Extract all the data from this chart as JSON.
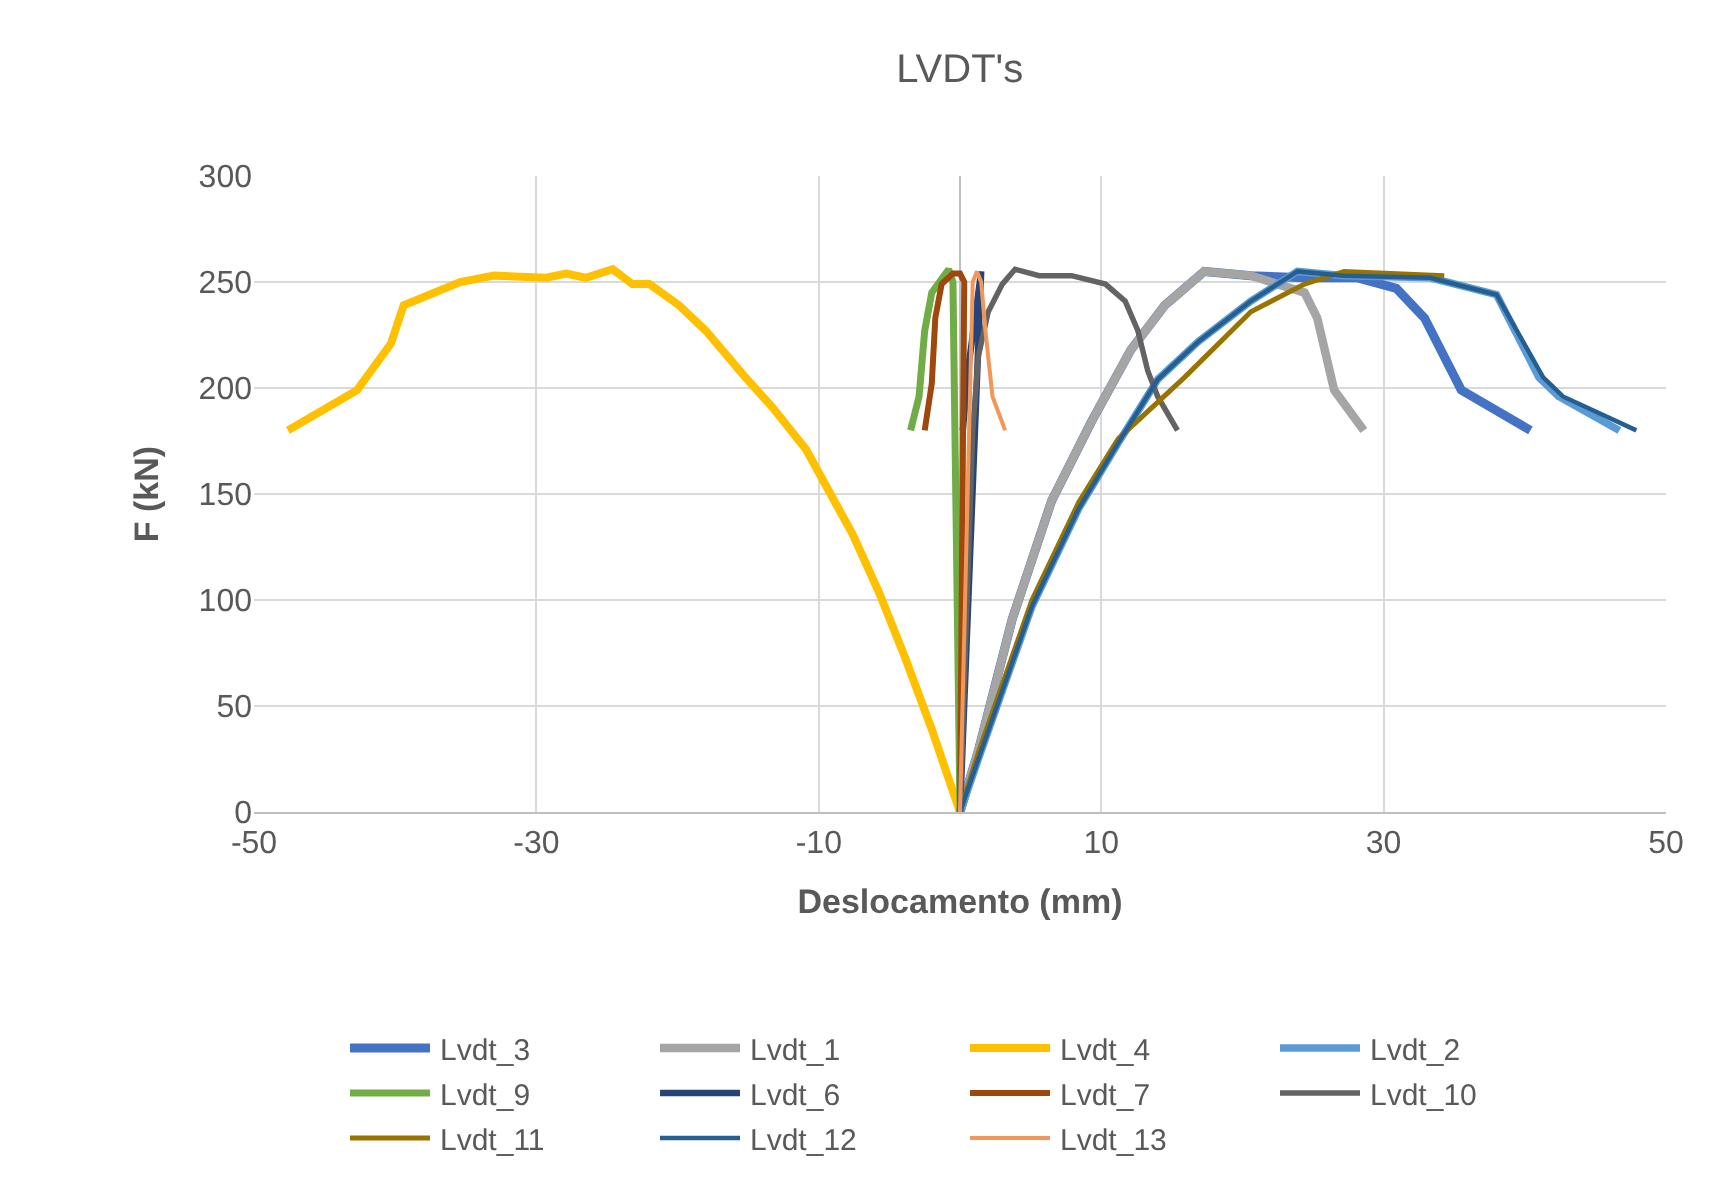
{
  "chart_data": {
    "type": "line",
    "title": "LVDT's",
    "xlabel": "Deslocamento (mm)",
    "ylabel": "F (kN)",
    "xlim": [
      -50,
      50
    ],
    "xticks": [
      -50,
      -30,
      -10,
      10,
      30,
      50
    ],
    "ylim": [
      0,
      300
    ],
    "yticks": [
      0,
      50,
      100,
      150,
      200,
      250,
      300
    ],
    "grid": true,
    "legend": "bottom",
    "marker": "none",
    "line_style": "solid",
    "series": [
      {
        "name": "Lvdt_3",
        "color": "#4472c4",
        "x": [
          0,
          1.3,
          3.7,
          6.5,
          9.3,
          12.1,
          14.5,
          17.3,
          20.6,
          24.4,
          28.1,
          30.9,
          32.9,
          35.5,
          40.4
        ],
        "values": [
          0,
          29,
          91,
          147,
          184,
          218,
          239,
          255,
          253,
          252,
          252,
          247,
          233,
          199,
          180
        ]
      },
      {
        "name": "Lvdt_1",
        "color": "#a5a5a5",
        "x": [
          0,
          1.3,
          3.7,
          6.5,
          9.3,
          12.1,
          14.5,
          17.3,
          20.6,
          24.4,
          25.3,
          26.5,
          28.6
        ],
        "values": [
          0,
          29,
          91,
          147,
          184,
          218,
          239,
          255,
          253,
          245,
          233,
          199,
          180
        ]
      },
      {
        "name": "Lvdt_4",
        "color": "#ffc000",
        "x": [
          0,
          -2,
          -3.9,
          -5.7,
          -7.6,
          -9.5,
          -10.9,
          -13.3,
          -15.2,
          -18,
          -19.9,
          -22,
          -23.2,
          -24.6,
          -26.5,
          -27.9,
          -29.3,
          -33,
          -35.4,
          -39.4,
          -40.3,
          -42.7,
          -47.6
        ],
        "values": [
          0,
          39,
          73,
          103,
          131,
          154,
          171,
          191,
          205,
          227,
          239,
          249,
          249,
          256,
          252,
          254,
          252,
          253,
          250,
          239,
          221,
          199,
          180
        ]
      },
      {
        "name": "Lvdt_2",
        "color": "#5b9bd5",
        "x": [
          0,
          1.3,
          5.1,
          8.4,
          11.2,
          14,
          16.9,
          20.6,
          23.9,
          27.2,
          33.3,
          38,
          41,
          42.4,
          46.7
        ],
        "values": [
          0,
          25,
          97,
          143,
          174,
          204,
          222,
          241,
          255,
          253,
          252,
          244,
          205,
          196,
          180
        ]
      },
      {
        "name": "Lvdt_9",
        "color": "#70ad47",
        "x": [
          0,
          -0.5,
          -0.8,
          -2,
          -2.5,
          -2.9,
          -3.5
        ],
        "values": [
          0,
          250,
          256,
          245,
          227,
          196,
          180
        ]
      },
      {
        "name": "Lvdt_6",
        "color": "#264478",
        "x": [
          0,
          1.5,
          1.3,
          0.6,
          0.2
        ],
        "values": [
          0,
          255,
          245,
          210,
          180
        ]
      },
      {
        "name": "Lvdt_7",
        "color": "#9e480e",
        "x": [
          0,
          0.3,
          0,
          -0.5,
          -1.3,
          -1.75,
          -2,
          -2.5
        ],
        "values": [
          0,
          250,
          254,
          254,
          249,
          233,
          202,
          180
        ]
      },
      {
        "name": "Lvdt_10",
        "color": "#636363",
        "x": [
          0,
          0.5,
          0.9,
          1.3,
          2,
          3,
          3.9,
          5.6,
          7.9,
          10.3,
          11.7,
          12.6,
          13.3,
          14,
          15.4
        ],
        "values": [
          0,
          100,
          180,
          215,
          236,
          249,
          256,
          253,
          253,
          249,
          241,
          227,
          208,
          196,
          180
        ]
      },
      {
        "name": "Lvdt_11",
        "color": "#997300",
        "x": [
          0,
          1.3,
          5.1,
          8.4,
          11.2,
          15.9,
          20.6,
          24.4,
          27.2,
          34.3
        ],
        "values": [
          0,
          28,
          100,
          146,
          176,
          205,
          236,
          249,
          255,
          253
        ]
      },
      {
        "name": "Lvdt_12",
        "color": "#255e91",
        "x": [
          0,
          1.3,
          5.1,
          8.4,
          11.2,
          14,
          16.9,
          20.6,
          23.9,
          27.2,
          33.3,
          38,
          41.3,
          42.7,
          47.9
        ],
        "values": [
          0,
          25,
          97,
          143,
          174,
          204,
          222,
          241,
          255,
          253,
          252,
          244,
          205,
          196,
          180
        ]
      },
      {
        "name": "Lvdt_13",
        "color": "#f1975a",
        "x": [
          0,
          0.9,
          1.2,
          1.5,
          1.8,
          2.3,
          3.2
        ],
        "values": [
          0,
          250,
          255,
          250,
          227,
          196,
          180
        ]
      }
    ]
  }
}
